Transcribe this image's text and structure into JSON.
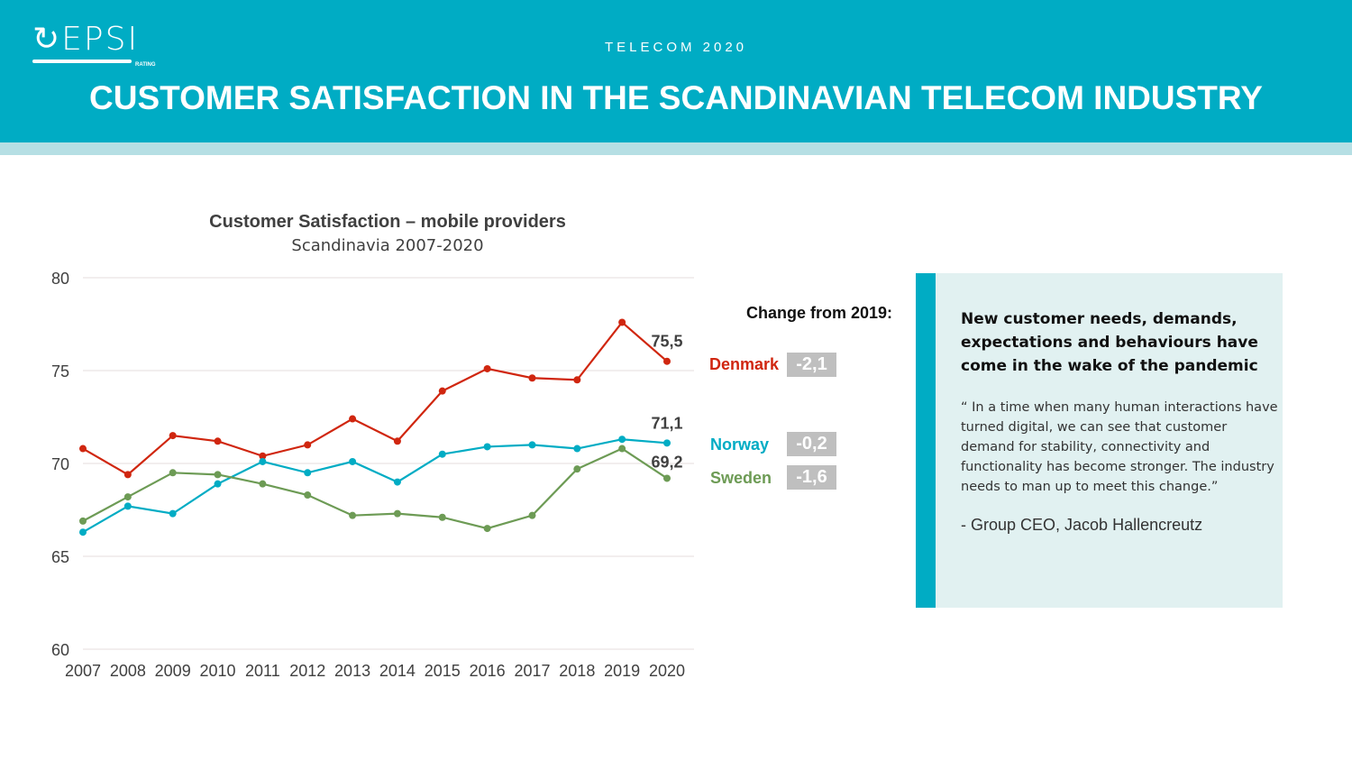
{
  "header": {
    "logo": "EPSI RATING",
    "kicker": "TELECOM 2020",
    "title": "CUSTOMER SATISFACTION IN THE SCANDINAVIAN TELECOM INDUSTRY"
  },
  "chart_data": {
    "type": "line",
    "title": "Customer Satisfaction – mobile providers",
    "subtitle": "Scandinavia 2007-2020",
    "xlabel": "",
    "ylabel": "",
    "ylim": [
      60,
      80
    ],
    "yticks": [
      "60",
      "65",
      "70",
      "75",
      "80"
    ],
    "grid": true,
    "categories": [
      "2007",
      "2008",
      "2009",
      "2010",
      "2011",
      "2012",
      "2013",
      "2014",
      "2015",
      "2016",
      "2017",
      "2018",
      "2019",
      "2020"
    ],
    "series": [
      {
        "name": "Denmark",
        "color": "#d0260f",
        "values": [
          70.8,
          69.4,
          71.5,
          71.2,
          70.4,
          71.0,
          72.4,
          71.2,
          73.9,
          75.1,
          74.6,
          74.5,
          77.6,
          75.5
        ],
        "end_label": "75,5"
      },
      {
        "name": "Norway",
        "color": "#00acc4",
        "values": [
          66.3,
          67.7,
          67.3,
          68.9,
          70.1,
          69.5,
          70.1,
          69.0,
          70.5,
          70.9,
          71.0,
          70.8,
          71.3,
          71.1
        ],
        "end_label": "71,1"
      },
      {
        "name": "Sweden",
        "color": "#6d9b55",
        "values": [
          66.9,
          68.2,
          69.5,
          69.4,
          68.9,
          68.3,
          67.2,
          67.3,
          67.1,
          66.5,
          67.2,
          69.7,
          70.8,
          69.2
        ],
        "end_label": "69,2"
      }
    ]
  },
  "changes": {
    "title": "Change from 2019:",
    "items": [
      {
        "country": "Denmark",
        "value": "-2,1",
        "color": "#d0260f"
      },
      {
        "country": "Norway",
        "value": "-0,2",
        "color": "#00acc4"
      },
      {
        "country": "Sweden",
        "value": "-1,6",
        "color": "#6d9b55"
      }
    ]
  },
  "panel": {
    "heading": "New customer needs, demands, expectations and behaviours have come in the wake of the pandemic",
    "quote": "“ In a time when many human interactions have turned digital, we can see that customer demand for stability, connectivity and functionality has become stronger. The industry needs to man up to meet this change.”",
    "author": "- Group CEO, Jacob Hallencreutz"
  }
}
